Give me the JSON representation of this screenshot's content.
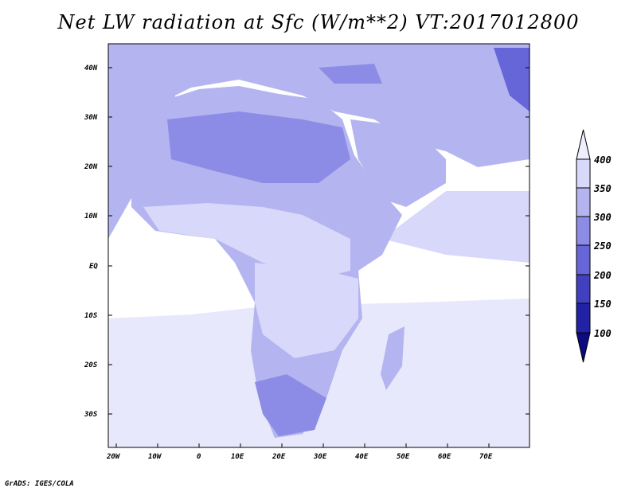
{
  "title": "Net LW radiation at Sfc (W/m**2) VT:2017012800",
  "footer": "GrADS: IGES/COLA",
  "map": {
    "lat_labels": [
      "40N",
      "30N",
      "20N",
      "10N",
      "EQ",
      "10S",
      "20S",
      "30S"
    ],
    "lon_labels": [
      "20W",
      "10W",
      "0",
      "10E",
      "20E",
      "30E",
      "40E",
      "50E",
      "60E",
      "70E"
    ],
    "lon_range": [
      -22,
      80
    ],
    "lat_range": [
      -37,
      45
    ]
  },
  "colorbar": {
    "levels": [
      "400",
      "350",
      "300",
      "250",
      "200",
      "150",
      "100"
    ],
    "colors": [
      "#eeeeff",
      "#d8d8fa",
      "#b4b4f0",
      "#8c8ce6",
      "#6666d8",
      "#4040c0",
      "#2222a6",
      "#0c0c80"
    ]
  }
}
